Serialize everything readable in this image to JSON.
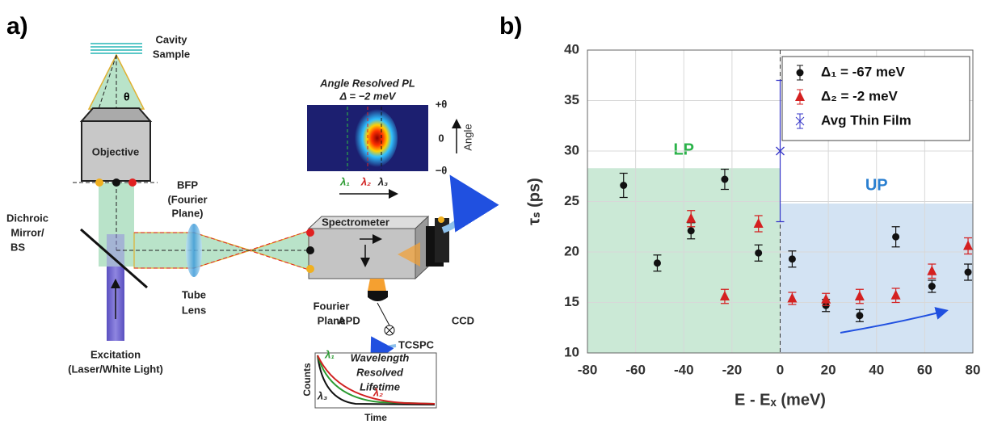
{
  "panel_a": {
    "label": "a)",
    "cavity_sample": [
      "Cavity",
      "Sample"
    ],
    "theta": "θ",
    "objective": "Objective",
    "bfp": [
      "BFP",
      "(Fourier",
      "Plane)"
    ],
    "dichroic": [
      "Dichroic",
      "Mirror/",
      "BS"
    ],
    "tube_lens": [
      "Tube",
      "Lens"
    ],
    "excitation": [
      "Excitation",
      "(Laser/White Light)"
    ],
    "spectrometer": "Spectrometer",
    "fourier_plane": [
      "Fourier",
      "Plane"
    ],
    "ccd": "CCD",
    "apd": "APD",
    "tcspc": "TCSPC",
    "pl_image": {
      "title": "Angle Resolved  PL",
      "subtitle": "Δ = −2 meV",
      "ticks": [
        "+θ",
        "0",
        "−θ"
      ],
      "axis": "Angle",
      "lambdas": [
        "λ₁",
        "λ₂",
        "λ₃"
      ]
    },
    "lifetime_inset": {
      "ylabel": "Counts",
      "xlabel": "Time",
      "text": [
        "Wavelength",
        "Resolved",
        "Lifetime"
      ],
      "lambdas": [
        "λ₁",
        "λ₂",
        "λ₃"
      ]
    }
  },
  "chart_data": {
    "type": "scatter",
    "panel_label": "b)",
    "xlabel": "E - Eₓ (meV)",
    "ylabel": "τₛ (ps)",
    "xlim": [
      -80,
      80
    ],
    "ylim": [
      10,
      40
    ],
    "xticks": [
      -80,
      -60,
      -40,
      -20,
      0,
      20,
      40,
      60,
      80
    ],
    "yticks": [
      10,
      15,
      20,
      25,
      30,
      35,
      40
    ],
    "grid": true,
    "legend": "upper right",
    "vlines": [
      0
    ],
    "regions": [
      {
        "label": "LP",
        "x": [
          -80,
          0
        ],
        "y": [
          10,
          28.3
        ],
        "color": "#cbe9d6",
        "label_color": "#2bb34a"
      },
      {
        "label": "UP",
        "x": [
          0,
          80
        ],
        "y": [
          10,
          24.8
        ],
        "color": "#d3e3f3",
        "label_color": "#2a7fd0"
      }
    ],
    "series": [
      {
        "name": "Δ₁ = -67 meV",
        "color": "#111111",
        "marker": "circle",
        "x": [
          -65,
          -51,
          -37,
          -23,
          -9,
          5,
          19,
          33,
          48,
          63,
          78
        ],
        "values": [
          26.6,
          18.9,
          22.1,
          27.2,
          19.9,
          19.3,
          14.7,
          13.7,
          21.5,
          16.6,
          18.0
        ],
        "errors": [
          1.2,
          0.8,
          0.8,
          1.0,
          0.8,
          0.8,
          0.6,
          0.6,
          1.0,
          0.6,
          0.8
        ]
      },
      {
        "name": "Δ₂ = -2 meV",
        "color": "#d42020",
        "marker": "triangle",
        "x": [
          -37,
          -23,
          -9,
          5,
          19,
          33,
          48,
          63,
          78
        ],
        "values": [
          23.3,
          15.6,
          22.8,
          15.4,
          15.3,
          15.6,
          15.7,
          18.1,
          20.6
        ],
        "errors": [
          0.8,
          0.7,
          0.8,
          0.6,
          0.6,
          0.7,
          0.7,
          0.7,
          0.8
        ]
      },
      {
        "name": "Avg Thin Film",
        "color": "#3434c8",
        "marker": "x",
        "x": [
          0
        ],
        "values": [
          30
        ],
        "errors": [
          7
        ]
      }
    ]
  }
}
